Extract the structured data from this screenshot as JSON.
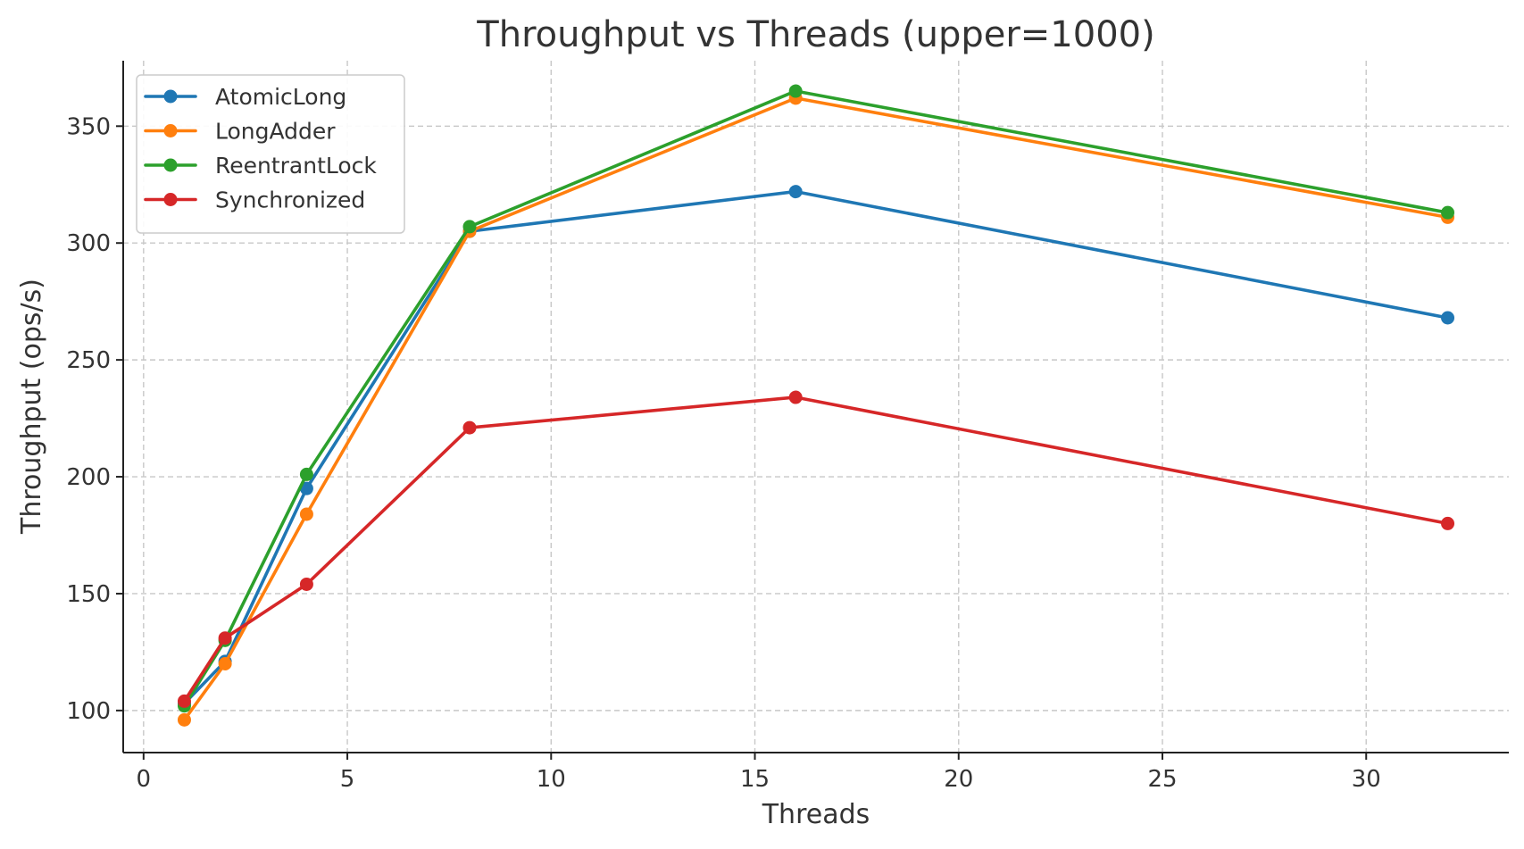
{
  "chart_data": {
    "type": "line",
    "title": "Throughput vs Threads (upper=1000)",
    "xlabel": "Threads",
    "ylabel": "Throughput (ops/s)",
    "xlim": [
      -0.5,
      33.5
    ],
    "ylim": [
      82,
      378
    ],
    "xticks": [
      0,
      5,
      10,
      15,
      20,
      25,
      30
    ],
    "yticks": [
      100,
      150,
      200,
      250,
      300,
      350
    ],
    "grid": true,
    "legend_position": "top-left",
    "x": [
      1,
      2,
      4,
      8,
      16,
      32
    ],
    "series": [
      {
        "name": "AtomicLong",
        "color": "#1f77b4",
        "values": [
          103,
          121,
          195,
          305,
          322,
          268
        ]
      },
      {
        "name": "LongAdder",
        "color": "#ff7f0e",
        "values": [
          96,
          120,
          184,
          305,
          362,
          311
        ]
      },
      {
        "name": "ReentrantLock",
        "color": "#2ca02c",
        "values": [
          102,
          130,
          201,
          307,
          365,
          313
        ]
      },
      {
        "name": "Synchronized",
        "color": "#d62728",
        "values": [
          104,
          131,
          154,
          221,
          234,
          180
        ]
      }
    ]
  }
}
